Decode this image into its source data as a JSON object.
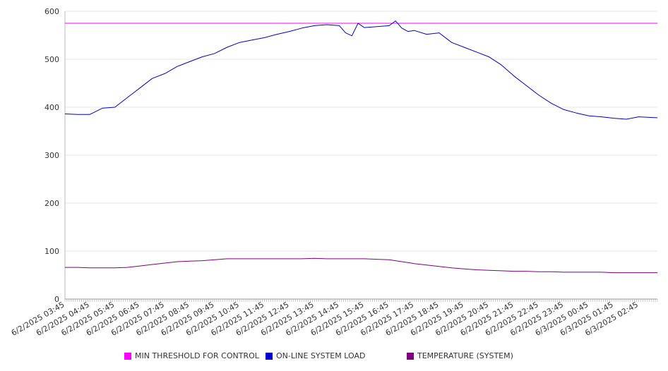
{
  "chart_data": {
    "type": "line",
    "title": "",
    "xlabel": "",
    "ylabel": "",
    "ylim": [
      0,
      600
    ],
    "yticks": [
      0,
      100,
      200,
      300,
      400,
      500,
      600
    ],
    "grid": true,
    "legend_position": "bottom",
    "x_tick_labels": [
      "6/2/2025 03:45",
      "6/2/2025 04:45",
      "6/2/2025 05:45",
      "6/2/2025 06:45",
      "6/2/2025 07:45",
      "6/2/2025 08:45",
      "6/2/2025 09:45",
      "6/2/2025 10:45",
      "6/2/2025 11:45",
      "6/2/2025 12:45",
      "6/2/2025 13:45",
      "6/2/2025 14:45",
      "6/2/2025 15:45",
      "6/2/2025 16:45",
      "6/2/2025 17:45",
      "6/2/2025 18:45",
      "6/2/2025 19:45",
      "6/2/2025 20:45",
      "6/2/2025 21:45",
      "6/2/2025 22:45",
      "6/2/2025 23:45",
      "6/3/2025 00:45",
      "6/3/2025 01:45",
      "6/3/2025 02:45"
    ],
    "x_times": [
      "03:45",
      "04:15",
      "04:45",
      "05:15",
      "05:45",
      "06:15",
      "06:45",
      "07:15",
      "07:45",
      "08:15",
      "08:45",
      "09:15",
      "09:45",
      "10:15",
      "10:45",
      "11:15",
      "11:45",
      "12:15",
      "12:45",
      "13:15",
      "13:45",
      "14:15",
      "14:45",
      "15:00",
      "15:15",
      "15:30",
      "15:45",
      "16:15",
      "16:45",
      "17:00",
      "17:15",
      "17:30",
      "17:45",
      "18:15",
      "18:45",
      "19:15",
      "19:45",
      "20:15",
      "20:45",
      "21:15",
      "21:45",
      "22:15",
      "22:45",
      "23:15",
      "23:45",
      "00:15",
      "00:45",
      "01:15",
      "01:45",
      "02:15",
      "02:45",
      "03:30"
    ],
    "series": [
      {
        "name": "MIN THRESHOLD FOR CONTROL",
        "color": "#ff00ff",
        "values": [
          575,
          575,
          575,
          575,
          575,
          575,
          575,
          575,
          575,
          575,
          575,
          575,
          575,
          575,
          575,
          575,
          575,
          575,
          575,
          575,
          575,
          575,
          575,
          575,
          575,
          575,
          575,
          575,
          575,
          575,
          575,
          575,
          575,
          575,
          575,
          575,
          575,
          575,
          575,
          575,
          575,
          575,
          575,
          575,
          575,
          575,
          575,
          575,
          575,
          575,
          575,
          575
        ]
      },
      {
        "name": "ON-LINE SYSTEM LOAD",
        "color": "#0000cc",
        "values": [
          386,
          385,
          385,
          398,
          400,
          420,
          440,
          460,
          470,
          485,
          495,
          505,
          512,
          525,
          535,
          540,
          545,
          552,
          558,
          565,
          570,
          572,
          570,
          555,
          549,
          575,
          566,
          568,
          570,
          580,
          565,
          558,
          560,
          552,
          555,
          535,
          525,
          515,
          505,
          488,
          465,
          445,
          425,
          408,
          395,
          388,
          382,
          380,
          377,
          375,
          380,
          378
        ]
      },
      {
        "name": "TEMPERATURE (SYSTEM)",
        "color": "#800080",
        "values": [
          66,
          66,
          65,
          65,
          65,
          66,
          69,
          72,
          75,
          78,
          79,
          80,
          82,
          84,
          84,
          84,
          84,
          84,
          84,
          84,
          85,
          84,
          84,
          84,
          84,
          84,
          84,
          83,
          82,
          80,
          78,
          76,
          74,
          71,
          68,
          65,
          63,
          61,
          60,
          59,
          58,
          58,
          57,
          57,
          56,
          56,
          56,
          56,
          55,
          55,
          55,
          55
        ]
      }
    ]
  }
}
